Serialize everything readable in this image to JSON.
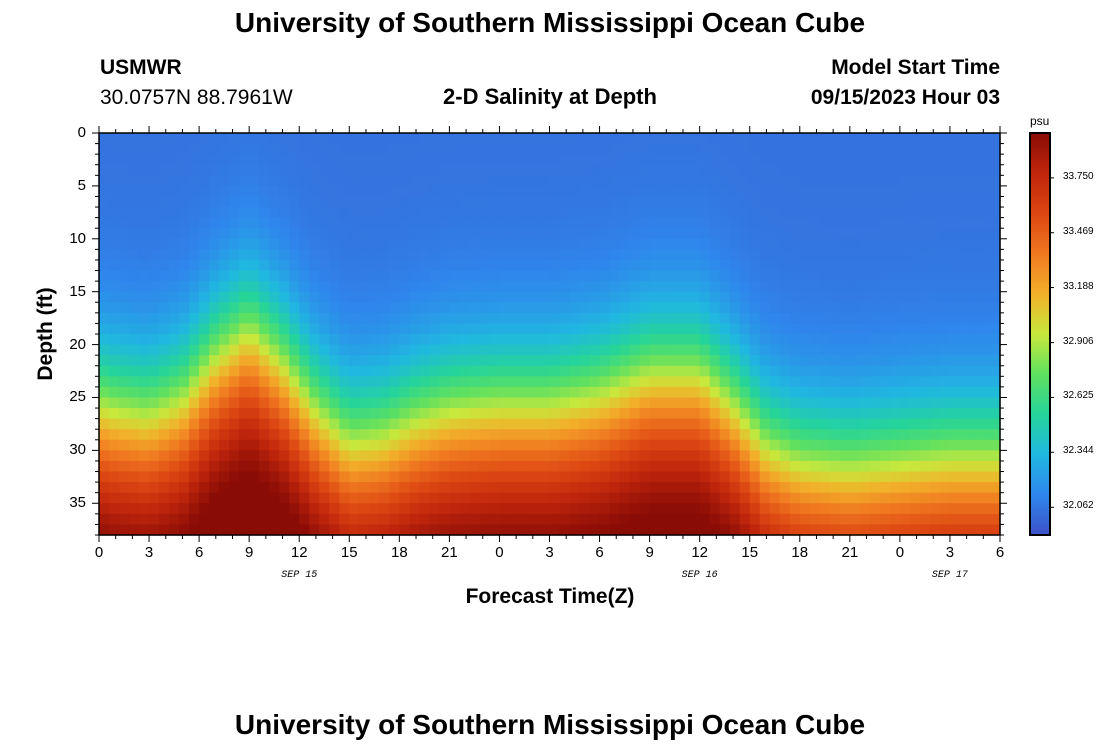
{
  "page": {
    "title_top": "University of Southern Mississippi Ocean Cube",
    "title_bottom": "University of Southern Mississippi Ocean Cube",
    "station": "USMWR",
    "coords": "30.0757N  88.7961W",
    "plot_title": "2-D Salinity at Depth",
    "model_start_label": "Model Start Time",
    "model_start_value": "09/15/2023 Hour 03"
  },
  "chart_data": {
    "type": "heatmap",
    "title": "2-D Salinity at Depth",
    "xlabel": "Forecast Time(Z)",
    "ylabel": "Depth (ft)",
    "x_tick_labels": [
      "0",
      "3",
      "6",
      "9",
      "12",
      "15",
      "18",
      "21",
      "0",
      "3",
      "6",
      "9",
      "12",
      "15",
      "18",
      "21",
      "0",
      "3",
      "6"
    ],
    "x_range_hours": [
      0,
      54
    ],
    "date_labels": [
      {
        "label": "SEP 15",
        "hour": 12
      },
      {
        "label": "SEP 16",
        "hour": 36
      },
      {
        "label": "SEP 17",
        "hour": 51
      }
    ],
    "y_ticks": [
      0,
      5,
      10,
      15,
      20,
      25,
      30,
      35
    ],
    "y_range_ft": [
      0,
      38
    ],
    "y_inverted": true,
    "colorbar": {
      "unit": "psu",
      "min": 31.92,
      "max": 33.98,
      "labels": [
        "33.750",
        "33.469",
        "33.188",
        "32.906",
        "32.625",
        "32.344",
        "32.062"
      ],
      "stops": [
        "#3d52c8",
        "#2f86ec",
        "#20b8e0",
        "#25d49a",
        "#5fe060",
        "#c8e83c",
        "#f2b02a",
        "#f07820",
        "#dc4612",
        "#c0260c",
        "#8a0c06"
      ]
    },
    "boundary_profile": {
      "hours": [
        0,
        1,
        3,
        5,
        7,
        9,
        11,
        13,
        15,
        17,
        19,
        21,
        24,
        27,
        30,
        33,
        36,
        38,
        40,
        42,
        45,
        48,
        51,
        54
      ],
      "depth_ft": [
        26.5,
        27,
        27.5,
        26,
        22,
        19.5,
        22.5,
        27,
        30,
        29.5,
        28,
        27,
        26.5,
        26.5,
        25.5,
        23.5,
        23.5,
        26.5,
        30.5,
        32,
        32.5,
        32,
        31.5,
        31.5
      ]
    },
    "surface_salinity_psu": 32.05,
    "bottom_salinity_psu": 33.95
  }
}
